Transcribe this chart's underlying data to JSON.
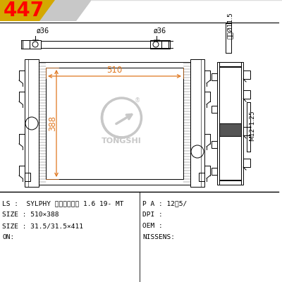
{
  "title_num": "447",
  "title_bg_color": "#d4a800",
  "title_silver": "#c8c8c8",
  "bg_color": "#ffffff",
  "line_color": "#000000",
  "dim_color": "#e07820",
  "logo_color": "#c8c8c8",
  "info_lines": [
    "LS :  SYLPHY 第十四代轩适 1.6 19- MT",
    "SIZE : 510×388",
    "SIZE : 31.5/31.5×411",
    "ON:"
  ],
  "info_lines_right": [
    "P A : 12泥5/",
    "DPI :",
    "OEM :",
    "NISSENS:"
  ],
  "dim_510": "510",
  "dim_388": "388",
  "dim_36_left": "ø36",
  "dim_36_right": "ø36",
  "dim_inner": "内孔Ø11.5",
  "dim_m12": "M12*1.25",
  "logo_text": "TONGSHI"
}
